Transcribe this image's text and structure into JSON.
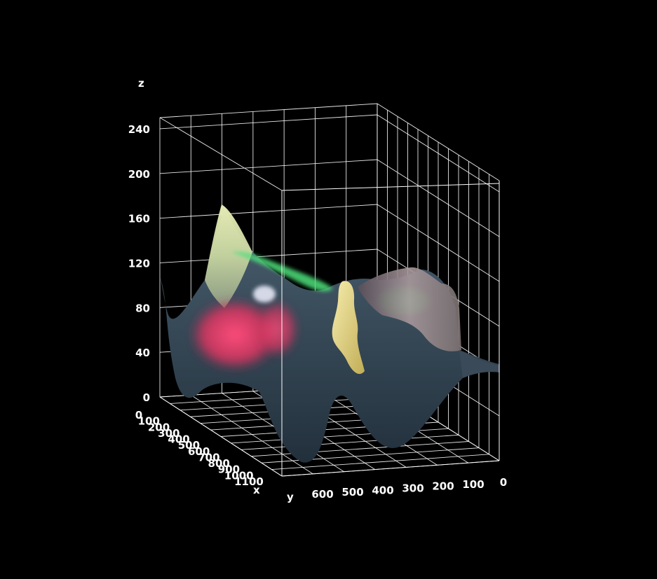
{
  "chart_data": {
    "type": "surface3d",
    "title": "",
    "axes": {
      "x": {
        "label": "x",
        "ticks": [
          "0",
          "100",
          "200",
          "300",
          "400",
          "500",
          "600",
          "700",
          "800",
          "900",
          "1000",
          "1100"
        ],
        "range": [
          0,
          1100
        ]
      },
      "y": {
        "label": "y",
        "ticks": [
          "600",
          "500",
          "400",
          "300",
          "200",
          "100",
          "0"
        ],
        "range": [
          0,
          600
        ]
      },
      "z": {
        "label": "z",
        "ticks": [
          "0",
          "40",
          "80",
          "120",
          "160",
          "200",
          "240"
        ],
        "range": [
          0,
          250
        ]
      }
    },
    "grid": true,
    "colors": {
      "background": "#000000",
      "grid": "#ffffff",
      "surface_dark": "#33475a",
      "surface_pink": "#e0406a",
      "surface_green": "#4fe07a",
      "surface_yellow": "#e8dd8a",
      "surface_mauve": "#9a8a92"
    }
  }
}
